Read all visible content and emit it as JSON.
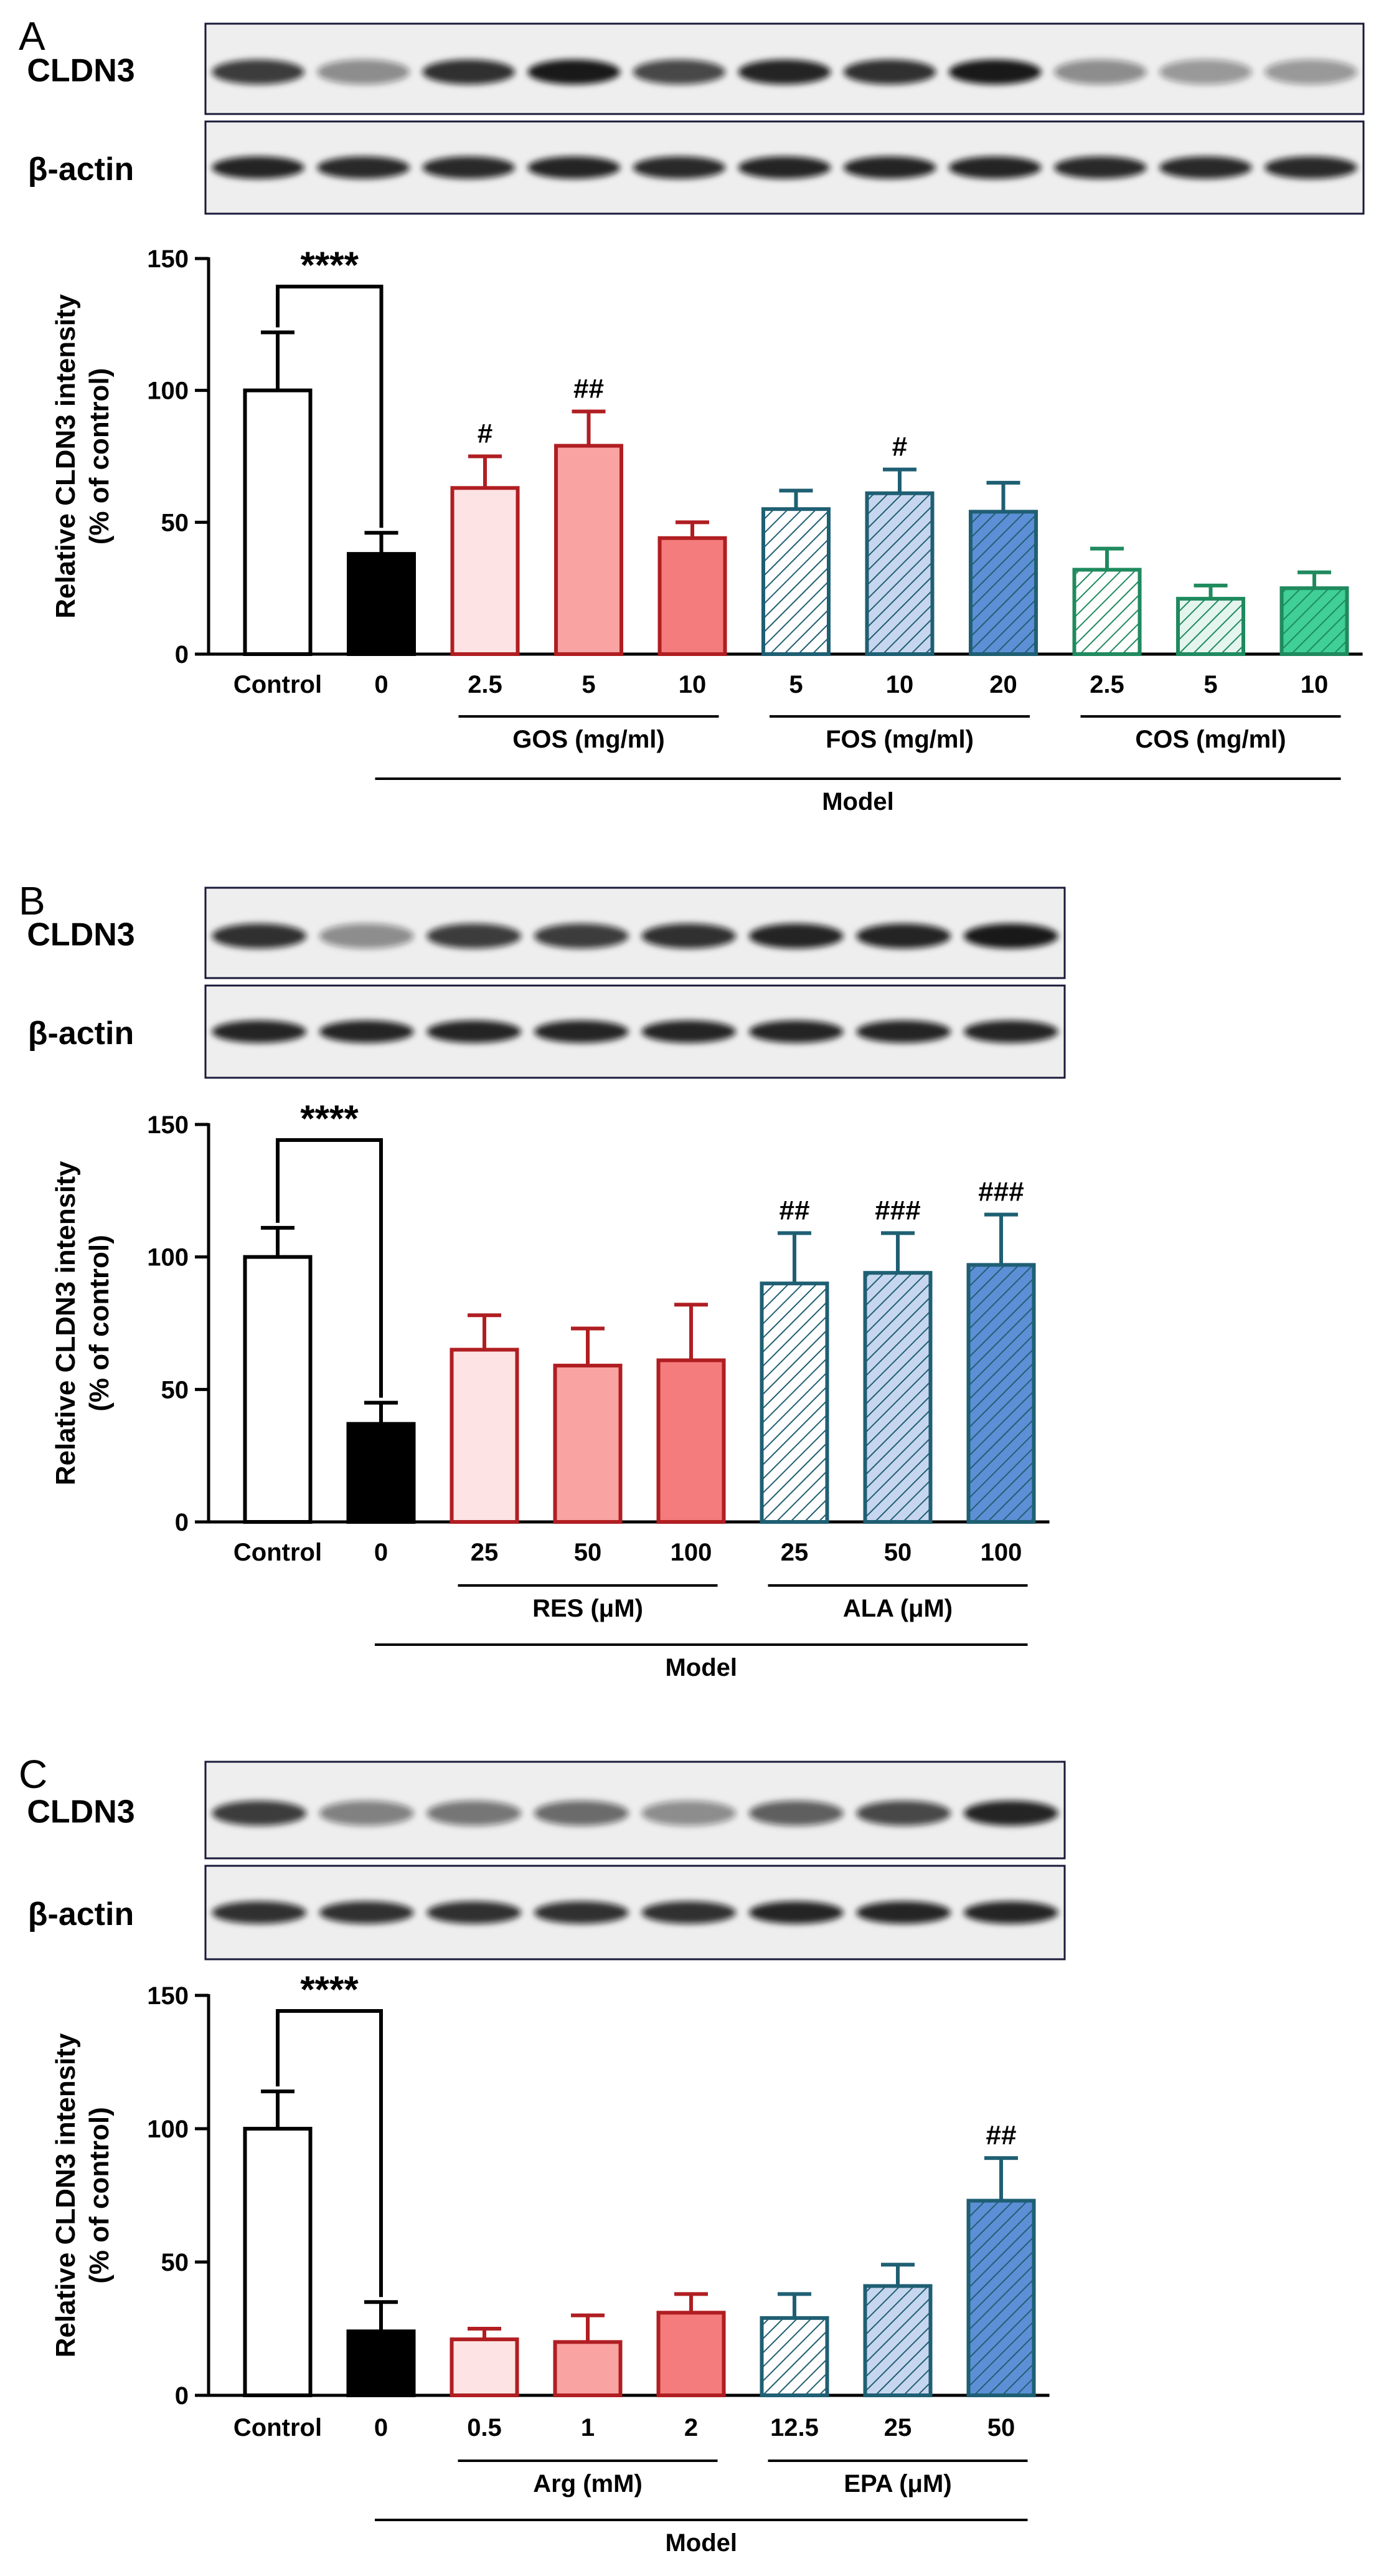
{
  "colors": {
    "control_fill": "#ffffff",
    "model_fill": "#000000",
    "red_dark": "#b01e22",
    "red_fills": [
      "#fde3e3",
      "#f9a3a3",
      "#f47c7c"
    ],
    "teal_dark": "#1f5f73",
    "blue_fills": [
      "#ffffff",
      "#c7d6ef",
      "#5d8fd6"
    ],
    "green_dark": "#1f8a5e",
    "green_fills": [
      "#ffffff",
      "#e4f5ee",
      "#3fcf97"
    ]
  },
  "chart_data": [
    {
      "type": "bar",
      "panel_letter": "A",
      "blot_labels": [
        "CLDN3",
        "β-actin"
      ],
      "ylabel_lines": [
        "Relative CLDN3 intensity",
        "(% of control)"
      ],
      "ylim": [
        0,
        150
      ],
      "yticks": [
        "0",
        "50",
        "100",
        "150"
      ],
      "categories": [
        "Control",
        "0",
        "2.5",
        "5",
        "10",
        "5",
        "10",
        "20",
        "2.5",
        "5",
        "10"
      ],
      "values": [
        100,
        38,
        63,
        79,
        44,
        55,
        61,
        54,
        32,
        21,
        25
      ],
      "errors": [
        22,
        8,
        12,
        13,
        6,
        7,
        9,
        11,
        8,
        5,
        6
      ],
      "bar_styles": [
        "control",
        "model",
        "red1",
        "red2",
        "red3",
        "teal1",
        "teal2",
        "teal3",
        "green1",
        "green2",
        "green3"
      ],
      "annotations": [
        "",
        "",
        "#",
        "##",
        "",
        "",
        "#",
        "",
        "",
        "",
        ""
      ],
      "significance": "****",
      "groups": [
        {
          "label": "GOS (mg/ml)",
          "from": 2,
          "to": 4
        },
        {
          "label": "FOS (mg/ml)",
          "from": 5,
          "to": 7
        },
        {
          "label": "COS (mg/ml)",
          "from": 8,
          "to": 10
        }
      ],
      "model_label": "Model"
    },
    {
      "type": "bar",
      "panel_letter": "B",
      "blot_labels": [
        "CLDN3",
        "β-actin"
      ],
      "ylabel_lines": [
        "Relative CLDN3 intensity",
        "(% of control)"
      ],
      "ylim": [
        0,
        150
      ],
      "yticks": [
        "0",
        "50",
        "100",
        "150"
      ],
      "categories": [
        "Control",
        "0",
        "25",
        "50",
        "100",
        "25",
        "50",
        "100"
      ],
      "values": [
        100,
        37,
        65,
        59,
        61,
        90,
        94,
        97
      ],
      "errors": [
        11,
        8,
        13,
        14,
        21,
        19,
        15,
        19
      ],
      "bar_styles": [
        "control",
        "model",
        "red1",
        "red2",
        "red3",
        "teal1",
        "teal2",
        "teal3"
      ],
      "annotations": [
        "",
        "",
        "",
        "",
        "",
        "##",
        "###",
        "###"
      ],
      "significance": "****",
      "groups": [
        {
          "label": "RES (μM)",
          "from": 2,
          "to": 4
        },
        {
          "label": "ALA (μM)",
          "from": 5,
          "to": 7
        }
      ],
      "model_label": "Model"
    },
    {
      "type": "bar",
      "panel_letter": "C",
      "blot_labels": [
        "CLDN3",
        "β-actin"
      ],
      "ylabel_lines": [
        "Relative CLDN3 intensity",
        "(% of control)"
      ],
      "ylim": [
        0,
        150
      ],
      "yticks": [
        "0",
        "50",
        "100",
        "150"
      ],
      "categories": [
        "Control",
        "0",
        "0.5",
        "1",
        "2",
        "12.5",
        "25",
        "50"
      ],
      "values": [
        100,
        24,
        21,
        20,
        31,
        29,
        41,
        73
      ],
      "errors": [
        14,
        11,
        4,
        10,
        7,
        9,
        8,
        16
      ],
      "bar_styles": [
        "control",
        "model",
        "red1",
        "red2",
        "red3",
        "teal1",
        "teal2",
        "teal3"
      ],
      "annotations": [
        "",
        "",
        "",
        "",
        "",
        "",
        "",
        "##"
      ],
      "significance": "****",
      "groups": [
        {
          "label": "Arg (mM)",
          "from": 2,
          "to": 4
        },
        {
          "label": "EPA (μM)",
          "from": 5,
          "to": 7
        }
      ],
      "model_label": "Model"
    }
  ]
}
